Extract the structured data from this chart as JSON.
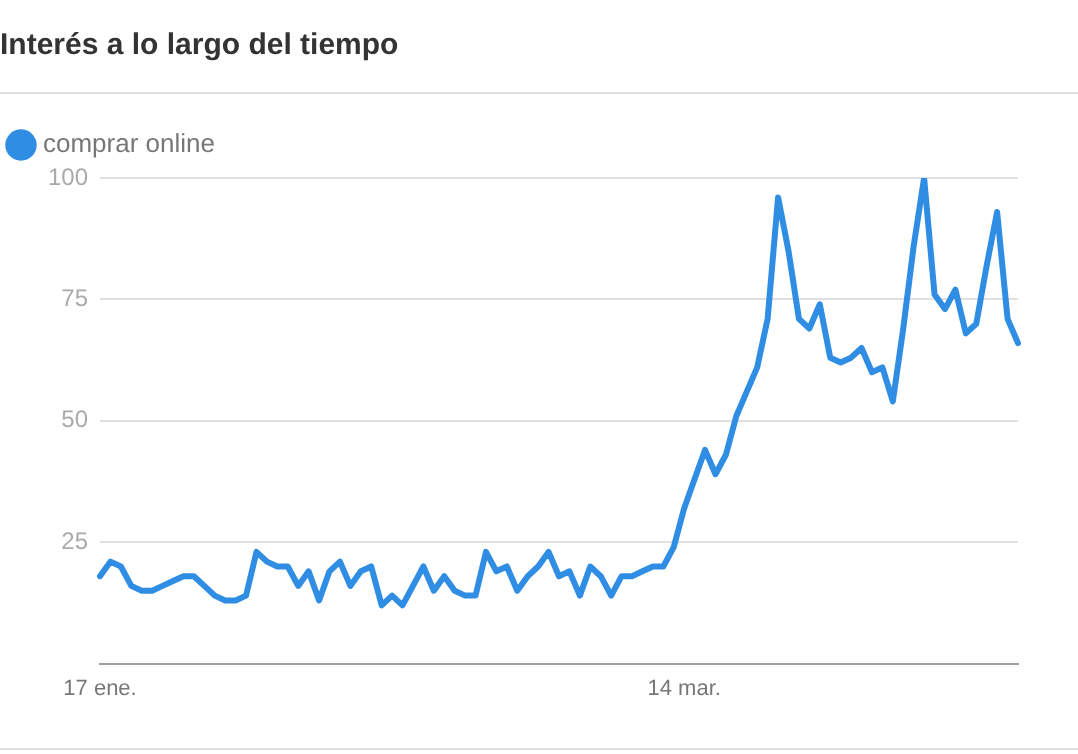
{
  "chart_data": {
    "type": "line",
    "title": "Interés a lo largo del tiempo",
    "categories": [
      "17 ene.",
      null,
      null,
      null,
      null,
      null,
      null,
      null,
      null,
      null,
      null,
      null,
      null,
      null,
      null,
      null,
      null,
      null,
      null,
      null,
      null,
      null,
      null,
      null,
      null,
      null,
      null,
      null,
      null,
      null,
      null,
      null,
      null,
      null,
      null,
      null,
      null,
      null,
      null,
      null,
      null,
      null,
      null,
      null,
      null,
      null,
      null,
      null,
      null,
      null,
      null,
      null,
      null,
      null,
      null,
      null,
      "14 mar.",
      null,
      null,
      null,
      null,
      null,
      null,
      null,
      null,
      null,
      null,
      null,
      null,
      null,
      null,
      null,
      null,
      null,
      null,
      null,
      null,
      null,
      null,
      null,
      null,
      null,
      null,
      null,
      null,
      null,
      null,
      null,
      null
    ],
    "series": [
      {
        "name": "comprar online",
        "color": "#2f8de4",
        "values": [
          18,
          21,
          20,
          16,
          15,
          15,
          16,
          17,
          18,
          18,
          16,
          14,
          13,
          13,
          14,
          23,
          21,
          20,
          20,
          16,
          19,
          13,
          19,
          21,
          16,
          19,
          20,
          12,
          14,
          12,
          16,
          20,
          15,
          18,
          15,
          14,
          14,
          23,
          19,
          20,
          15,
          18,
          20,
          23,
          18,
          19,
          14,
          20,
          18,
          14,
          18,
          18,
          19,
          20,
          20,
          24,
          32,
          38,
          44,
          39,
          43,
          51,
          56,
          61,
          71,
          96,
          85,
          71,
          69,
          74,
          63,
          62,
          63,
          65,
          60,
          61,
          54,
          69,
          86,
          100,
          76,
          73,
          77,
          68,
          70,
          82,
          93,
          71,
          66
        ]
      }
    ],
    "ylim": [
      0,
      100
    ],
    "yticks": [
      25,
      50,
      75,
      100
    ],
    "grid": "y",
    "legend": "top left",
    "marker": "none",
    "line_style": "solid"
  }
}
